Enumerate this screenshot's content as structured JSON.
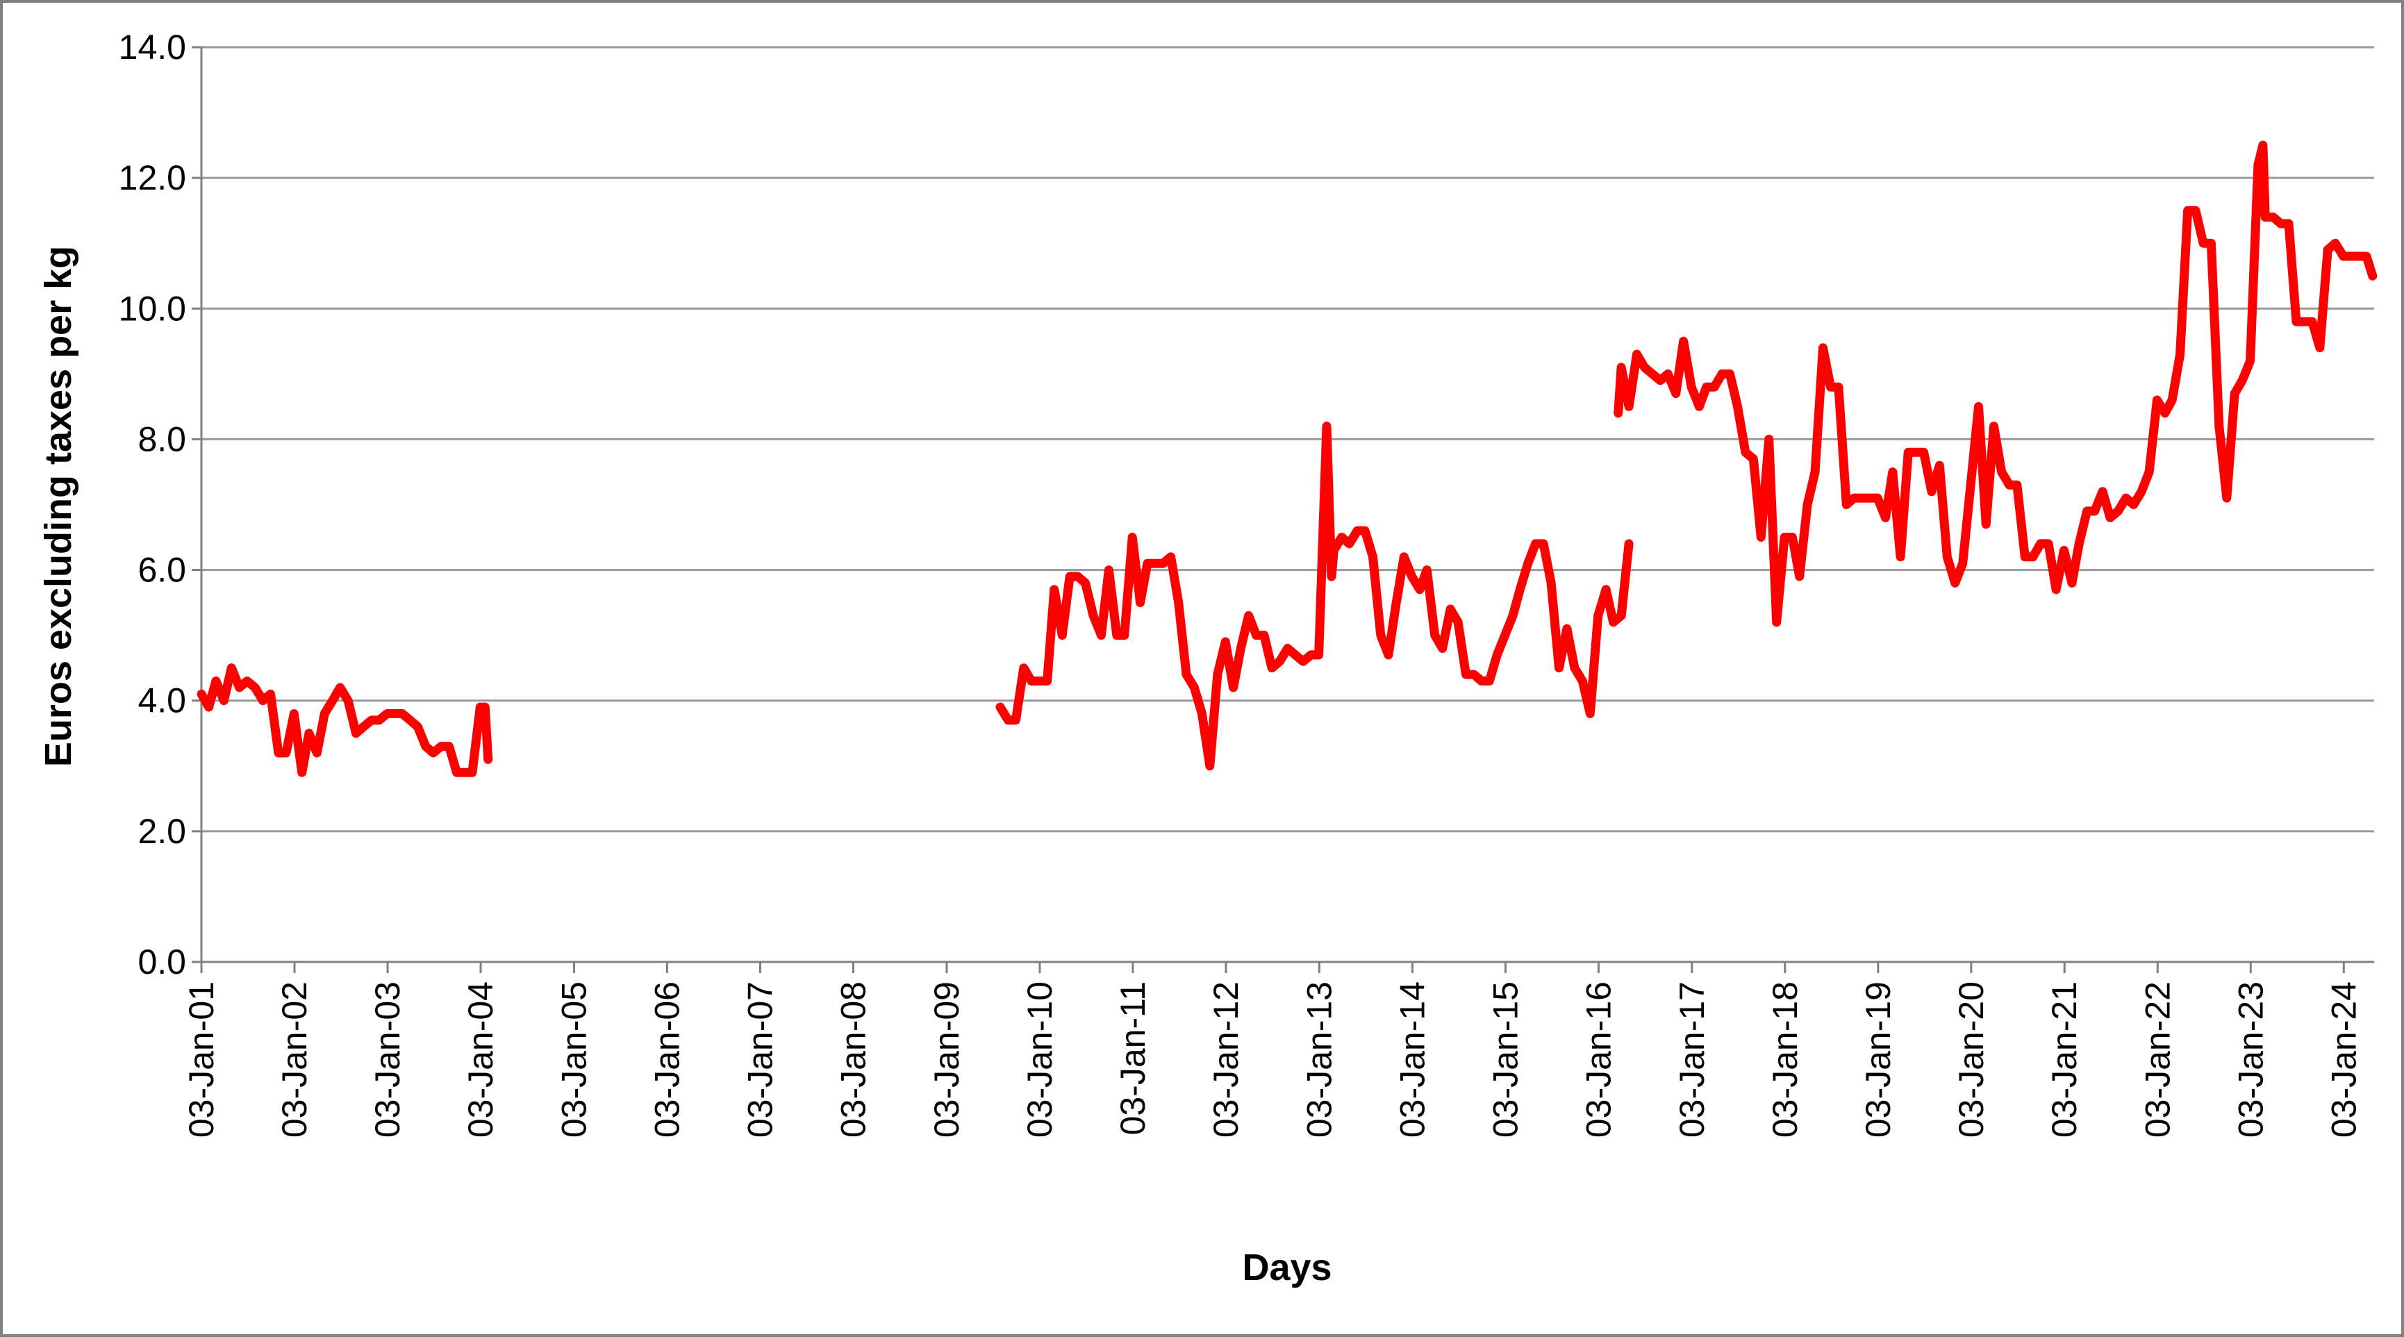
{
  "chart_data": {
    "type": "line",
    "title": "",
    "xlabel": "Days",
    "ylabel": "Euros excluding taxes per kg",
    "grid": true,
    "legend": "none",
    "ylim": [
      0,
      14
    ],
    "xlim": [
      "2001-01-03",
      "2024-05-01"
    ],
    "y_ticks": [
      0,
      2,
      4,
      6,
      8,
      10,
      12,
      14
    ],
    "y_tick_labels": [
      "0.0",
      "2.0",
      "4.0",
      "6.0",
      "8.0",
      "10.0",
      "12.0",
      "14.0"
    ],
    "x_ticks": [
      "2001-01-03",
      "2002-01-03",
      "2003-01-03",
      "2004-01-03",
      "2005-01-03",
      "2006-01-03",
      "2007-01-03",
      "2008-01-03",
      "2009-01-03",
      "2010-01-03",
      "2011-01-03",
      "2012-01-03",
      "2013-01-03",
      "2014-01-03",
      "2015-01-03",
      "2016-01-03",
      "2017-01-03",
      "2018-01-03",
      "2019-01-03",
      "2020-01-03",
      "2021-01-03",
      "2022-01-03",
      "2023-01-03",
      "2024-01-03"
    ],
    "x_tick_labels": [
      "03-Jan-01",
      "03-Jan-02",
      "03-Jan-03",
      "03-Jan-04",
      "03-Jan-05",
      "03-Jan-06",
      "03-Jan-07",
      "03-Jan-08",
      "03-Jan-09",
      "03-Jan-10",
      "03-Jan-11",
      "03-Jan-12",
      "03-Jan-13",
      "03-Jan-14",
      "03-Jan-15",
      "03-Jan-16",
      "03-Jan-17",
      "03-Jan-18",
      "03-Jan-19",
      "03-Jan-20",
      "03-Jan-21",
      "03-Jan-22",
      "03-Jan-23",
      "03-Jan-24"
    ],
    "colors": {
      "series": "#ff0000",
      "grid": "#999999",
      "axis": "#808080",
      "frame": "#808080"
    },
    "series": [
      {
        "segments": [
          [
            [
              "2001-01-03",
              4.1
            ],
            [
              "2001-02-01",
              3.9
            ],
            [
              "2001-03-01",
              4.3
            ],
            [
              "2001-04-01",
              4.0
            ],
            [
              "2001-05-01",
              4.5
            ],
            [
              "2001-06-01",
              4.2
            ],
            [
              "2001-07-01",
              4.3
            ],
            [
              "2001-08-01",
              4.2
            ],
            [
              "2001-09-01",
              4.0
            ],
            [
              "2001-10-01",
              4.1
            ],
            [
              "2001-11-01",
              3.2
            ],
            [
              "2001-12-01",
              3.2
            ],
            [
              "2002-01-01",
              3.8
            ],
            [
              "2002-02-01",
              2.9
            ],
            [
              "2002-03-01",
              3.5
            ],
            [
              "2002-04-01",
              3.2
            ],
            [
              "2002-05-01",
              3.8
            ],
            [
              "2002-06-01",
              4.0
            ],
            [
              "2002-07-01",
              4.2
            ],
            [
              "2002-08-01",
              4.0
            ],
            [
              "2002-09-01",
              3.5
            ],
            [
              "2002-10-01",
              3.6
            ],
            [
              "2002-11-01",
              3.7
            ],
            [
              "2002-12-01",
              3.7
            ],
            [
              "2003-01-01",
              3.8
            ],
            [
              "2003-02-01",
              3.8
            ],
            [
              "2003-03-01",
              3.8
            ],
            [
              "2003-04-01",
              3.7
            ],
            [
              "2003-05-01",
              3.6
            ],
            [
              "2003-06-01",
              3.3
            ],
            [
              "2003-07-01",
              3.2
            ],
            [
              "2003-08-01",
              3.3
            ],
            [
              "2003-09-01",
              3.3
            ],
            [
              "2003-10-01",
              2.9
            ],
            [
              "2003-11-01",
              2.9
            ],
            [
              "2003-12-01",
              2.9
            ],
            [
              "2004-01-01",
              3.9
            ],
            [
              "2004-01-20",
              3.9
            ],
            [
              "2004-02-01",
              3.1
            ]
          ],
          [
            [
              "2009-08-01",
              3.9
            ],
            [
              "2009-09-01",
              3.7
            ],
            [
              "2009-10-01",
              3.7
            ],
            [
              "2009-11-01",
              4.5
            ],
            [
              "2009-12-01",
              4.3
            ],
            [
              "2010-01-01",
              4.3
            ],
            [
              "2010-02-01",
              4.3
            ],
            [
              "2010-03-01",
              5.7
            ],
            [
              "2010-04-01",
              5.0
            ],
            [
              "2010-05-01",
              5.9
            ],
            [
              "2010-06-01",
              5.9
            ],
            [
              "2010-07-01",
              5.8
            ],
            [
              "2010-08-01",
              5.3
            ],
            [
              "2010-09-01",
              5.0
            ],
            [
              "2010-10-01",
              6.0
            ],
            [
              "2010-11-01",
              5.0
            ],
            [
              "2010-12-01",
              5.0
            ],
            [
              "2011-01-01",
              6.5
            ],
            [
              "2011-02-01",
              5.5
            ],
            [
              "2011-03-01",
              6.1
            ],
            [
              "2011-04-01",
              6.1
            ],
            [
              "2011-05-01",
              6.1
            ],
            [
              "2011-06-01",
              6.2
            ],
            [
              "2011-07-01",
              5.5
            ],
            [
              "2011-08-01",
              4.4
            ],
            [
              "2011-09-01",
              4.2
            ],
            [
              "2011-10-01",
              3.8
            ],
            [
              "2011-11-01",
              3.0
            ],
            [
              "2011-12-01",
              4.4
            ],
            [
              "2012-01-01",
              4.9
            ],
            [
              "2012-02-01",
              4.2
            ],
            [
              "2012-03-01",
              4.8
            ],
            [
              "2012-04-01",
              5.3
            ],
            [
              "2012-05-01",
              5.0
            ],
            [
              "2012-06-01",
              5.0
            ],
            [
              "2012-07-01",
              4.5
            ],
            [
              "2012-08-01",
              4.6
            ],
            [
              "2012-09-01",
              4.8
            ],
            [
              "2012-10-01",
              4.7
            ],
            [
              "2012-11-01",
              4.6
            ],
            [
              "2012-12-01",
              4.7
            ],
            [
              "2013-01-01",
              4.7
            ],
            [
              "2013-02-01",
              8.2
            ],
            [
              "2013-02-20",
              5.9
            ],
            [
              "2013-03-01",
              6.3
            ],
            [
              "2013-04-01",
              6.5
            ],
            [
              "2013-05-01",
              6.4
            ],
            [
              "2013-06-01",
              6.6
            ],
            [
              "2013-07-01",
              6.6
            ],
            [
              "2013-08-01",
              6.2
            ],
            [
              "2013-09-01",
              5.0
            ],
            [
              "2013-10-01",
              4.7
            ],
            [
              "2013-11-01",
              5.5
            ],
            [
              "2013-12-01",
              6.2
            ],
            [
              "2014-01-01",
              5.9
            ],
            [
              "2014-02-01",
              5.7
            ],
            [
              "2014-03-01",
              6.0
            ],
            [
              "2014-04-01",
              5.0
            ],
            [
              "2014-05-01",
              4.8
            ],
            [
              "2014-06-01",
              5.4
            ],
            [
              "2014-07-01",
              5.2
            ],
            [
              "2014-08-01",
              4.4
            ],
            [
              "2014-09-01",
              4.4
            ],
            [
              "2014-10-01",
              4.3
            ],
            [
              "2014-11-01",
              4.3
            ],
            [
              "2014-12-01",
              4.7
            ],
            [
              "2015-01-01",
              5.0
            ],
            [
              "2015-02-01",
              5.3
            ],
            [
              "2015-03-01",
              5.7
            ],
            [
              "2015-04-01",
              6.1
            ],
            [
              "2015-05-01",
              6.4
            ],
            [
              "2015-06-01",
              6.4
            ],
            [
              "2015-07-01",
              5.8
            ],
            [
              "2015-08-01",
              4.5
            ],
            [
              "2015-09-01",
              5.1
            ],
            [
              "2015-10-01",
              4.5
            ],
            [
              "2015-11-01",
              4.3
            ],
            [
              "2015-12-01",
              3.8
            ],
            [
              "2016-01-01",
              5.3
            ],
            [
              "2016-02-01",
              5.7
            ],
            [
              "2016-03-01",
              5.2
            ],
            [
              "2016-04-01",
              5.3
            ],
            [
              "2016-05-01",
              6.4
            ]
          ],
          [
            [
              "2016-03-20",
              8.4
            ],
            [
              "2016-04-01",
              9.1
            ],
            [
              "2016-05-01",
              8.5
            ],
            [
              "2016-06-01",
              9.3
            ],
            [
              "2016-07-01",
              9.1
            ],
            [
              "2016-08-01",
              9.0
            ],
            [
              "2016-09-01",
              8.9
            ],
            [
              "2016-10-01",
              9.0
            ],
            [
              "2016-11-01",
              8.7
            ],
            [
              "2016-12-01",
              9.5
            ],
            [
              "2017-01-01",
              8.8
            ],
            [
              "2017-02-01",
              8.5
            ],
            [
              "2017-03-01",
              8.8
            ],
            [
              "2017-04-01",
              8.8
            ],
            [
              "2017-05-01",
              9.0
            ],
            [
              "2017-06-01",
              9.0
            ],
            [
              "2017-07-01",
              8.5
            ],
            [
              "2017-08-01",
              7.8
            ],
            [
              "2017-09-01",
              7.7
            ],
            [
              "2017-10-01",
              6.5
            ],
            [
              "2017-11-01",
              8.0
            ],
            [
              "2017-12-01",
              5.2
            ],
            [
              "2018-01-01",
              6.5
            ],
            [
              "2018-02-01",
              6.5
            ],
            [
              "2018-03-01",
              5.9
            ],
            [
              "2018-04-01",
              7.0
            ],
            [
              "2018-05-01",
              7.5
            ],
            [
              "2018-06-01",
              9.4
            ],
            [
              "2018-07-01",
              8.8
            ],
            [
              "2018-08-01",
              8.8
            ],
            [
              "2018-09-01",
              7.0
            ],
            [
              "2018-10-01",
              7.1
            ],
            [
              "2018-11-01",
              7.1
            ],
            [
              "2018-12-01",
              7.1
            ],
            [
              "2019-01-01",
              7.1
            ],
            [
              "2019-02-01",
              6.8
            ],
            [
              "2019-03-01",
              7.5
            ],
            [
              "2019-04-01",
              6.2
            ],
            [
              "2019-05-01",
              7.8
            ],
            [
              "2019-06-01",
              7.8
            ],
            [
              "2019-07-01",
              7.8
            ],
            [
              "2019-08-01",
              7.2
            ],
            [
              "2019-09-01",
              7.6
            ],
            [
              "2019-10-01",
              6.2
            ],
            [
              "2019-11-01",
              5.8
            ],
            [
              "2019-12-01",
              6.1
            ],
            [
              "2020-01-01",
              7.3
            ],
            [
              "2020-02-01",
              8.5
            ],
            [
              "2020-03-01",
              6.7
            ],
            [
              "2020-04-01",
              8.2
            ],
            [
              "2020-05-01",
              7.5
            ],
            [
              "2020-06-01",
              7.3
            ],
            [
              "2020-07-01",
              7.3
            ],
            [
              "2020-08-01",
              6.2
            ],
            [
              "2020-09-01",
              6.2
            ],
            [
              "2020-10-01",
              6.4
            ],
            [
              "2020-11-01",
              6.4
            ],
            [
              "2020-12-01",
              5.7
            ],
            [
              "2021-01-01",
              6.3
            ],
            [
              "2021-02-01",
              5.8
            ],
            [
              "2021-03-01",
              6.4
            ],
            [
              "2021-04-01",
              6.9
            ],
            [
              "2021-05-01",
              6.9
            ],
            [
              "2021-06-01",
              7.2
            ],
            [
              "2021-07-01",
              6.8
            ],
            [
              "2021-08-01",
              6.9
            ],
            [
              "2021-09-01",
              7.1
            ],
            [
              "2021-10-01",
              7.0
            ],
            [
              "2021-11-01",
              7.2
            ],
            [
              "2021-12-01",
              7.5
            ],
            [
              "2022-01-01",
              8.6
            ],
            [
              "2022-02-01",
              8.4
            ],
            [
              "2022-03-01",
              8.6
            ],
            [
              "2022-04-01",
              9.3
            ],
            [
              "2022-05-01",
              11.5
            ],
            [
              "2022-06-01",
              11.5
            ],
            [
              "2022-07-01",
              11.0
            ],
            [
              "2022-08-01",
              11.0
            ],
            [
              "2022-09-01",
              8.2
            ],
            [
              "2022-10-01",
              7.1
            ],
            [
              "2022-11-01",
              8.7
            ],
            [
              "2022-12-01",
              8.9
            ],
            [
              "2023-01-01",
              9.2
            ],
            [
              "2023-02-01",
              12.2
            ],
            [
              "2023-02-20",
              12.5
            ],
            [
              "2023-03-01",
              11.4
            ],
            [
              "2023-04-01",
              11.4
            ],
            [
              "2023-05-01",
              11.3
            ],
            [
              "2023-06-01",
              11.3
            ],
            [
              "2023-07-01",
              9.8
            ],
            [
              "2023-08-01",
              9.8
            ],
            [
              "2023-09-01",
              9.8
            ],
            [
              "2023-10-01",
              9.4
            ],
            [
              "2023-11-01",
              10.9
            ],
            [
              "2023-12-01",
              11.0
            ],
            [
              "2024-01-01",
              10.8
            ],
            [
              "2024-02-01",
              10.8
            ],
            [
              "2024-03-01",
              10.8
            ],
            [
              "2024-04-01",
              10.8
            ],
            [
              "2024-04-25",
              10.5
            ]
          ]
        ]
      }
    ]
  }
}
